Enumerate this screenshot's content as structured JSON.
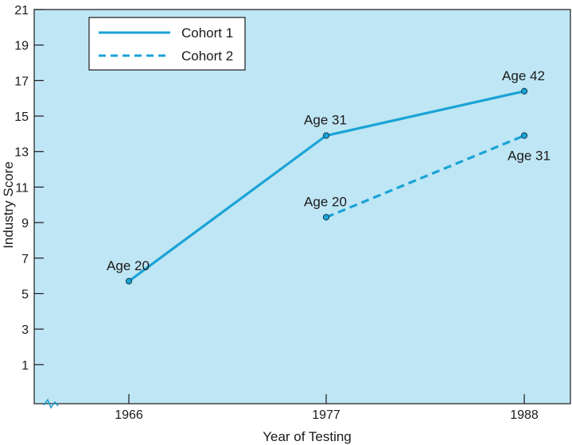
{
  "colors": {
    "plot_background": "#bfe6f4",
    "series_line": "#1aa3d6",
    "axis": "#1a1a1a"
  },
  "chart_data": {
    "type": "line",
    "xlabel": "Year of Testing",
    "ylabel": "Industry Score",
    "x_ticks": [
      "1966",
      "1977",
      "1988"
    ],
    "y_ticks": [
      1,
      3,
      5,
      7,
      9,
      11,
      13,
      15,
      17,
      19,
      21
    ],
    "ylim": [
      -1.2,
      21
    ],
    "grid": false,
    "legend_position": "top-left",
    "series": [
      {
        "name": "Cohort 1",
        "style": "solid",
        "points": [
          {
            "x": "1966",
            "y": 5.7,
            "label": "Age 20"
          },
          {
            "x": "1977",
            "y": 13.9,
            "label": "Age 31"
          },
          {
            "x": "1988",
            "y": 16.4,
            "label": "Age 42"
          }
        ]
      },
      {
        "name": "Cohort 2",
        "style": "dashed",
        "points": [
          {
            "x": "1977",
            "y": 9.3,
            "label": "Age 20"
          },
          {
            "x": "1988",
            "y": 13.9,
            "label": "Age 31"
          }
        ]
      }
    ]
  }
}
